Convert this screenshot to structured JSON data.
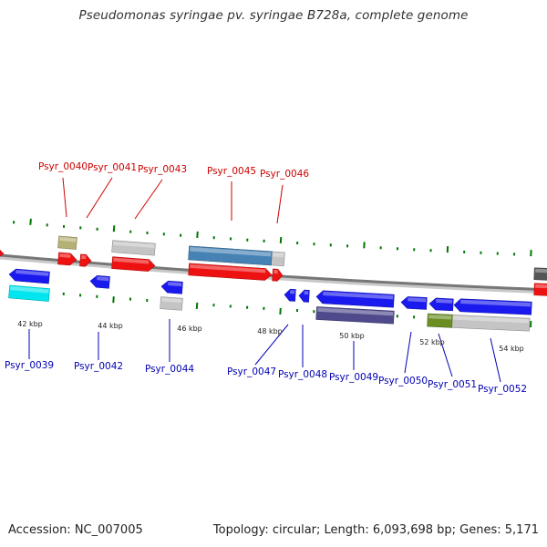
{
  "title": "Pseudomonas syringae pv. syringae B728a, complete genome",
  "footer": {
    "accession": "Accession: NC_007005",
    "topology": "Topology: circular; Length: 6,093,698 bp; Genes: 5,171"
  },
  "colors": {
    "forward_label": "#cc0000",
    "reverse_label": "#0000b3",
    "backbone": "#777777",
    "tick": "#007700",
    "red_arrow": "#ee1111",
    "blue_arrow": "#1a1aee",
    "cyan": "#00e5ee",
    "olive": "#b5b074",
    "light_gray": "#c4c4c4",
    "steel_blue": "#4682b4",
    "slate_blue": "#4f4a8c",
    "dark_gray": "#555555",
    "olive_green": "#6b8e23"
  },
  "forward_labels": [
    "Psyr_0040",
    "Psyr_0041",
    "Psyr_0043",
    "Psyr_0045",
    "Psyr_0046"
  ],
  "reverse_labels": [
    "Psyr_0039",
    "Psyr_0042",
    "Psyr_0044",
    "Psyr_0047",
    "Psyr_0048",
    "Psyr_0049",
    "Psyr_0050",
    "Psyr_0051",
    "Psyr_0052"
  ],
  "kbp_labels": [
    "42 kbp",
    "44 kbp",
    "46 kbp",
    "48 kbp",
    "50 kbp",
    "52 kbp",
    "54 kbp"
  ]
}
